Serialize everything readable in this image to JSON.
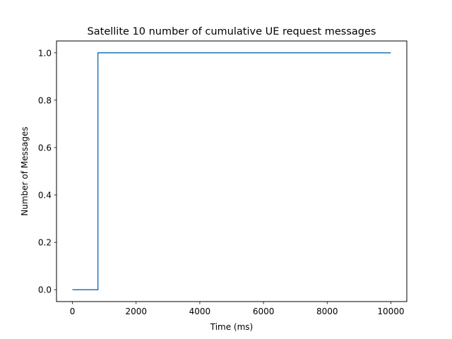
{
  "chart_data": {
    "type": "line",
    "title": "Satellite 10 number of cumulative UE request messages",
    "xlabel": "Time (ms)",
    "ylabel": "Number of Messages",
    "xlim": [
      -500,
      10500
    ],
    "ylim": [
      -0.05,
      1.05
    ],
    "x_ticks": [
      0,
      2000,
      4000,
      6000,
      8000,
      10000
    ],
    "x_tick_labels": [
      "0",
      "2000",
      "4000",
      "6000",
      "8000",
      "10000"
    ],
    "y_ticks": [
      0.0,
      0.2,
      0.4,
      0.6,
      0.8,
      1.0
    ],
    "y_tick_labels": [
      "0.0",
      "0.2",
      "0.4",
      "0.6",
      "0.8",
      "1.0"
    ],
    "grid": false,
    "series": [
      {
        "color": "#1f77b4",
        "step": true,
        "x": [
          0,
          800,
          800,
          10000
        ],
        "y": [
          0,
          0,
          1,
          1
        ]
      }
    ]
  }
}
